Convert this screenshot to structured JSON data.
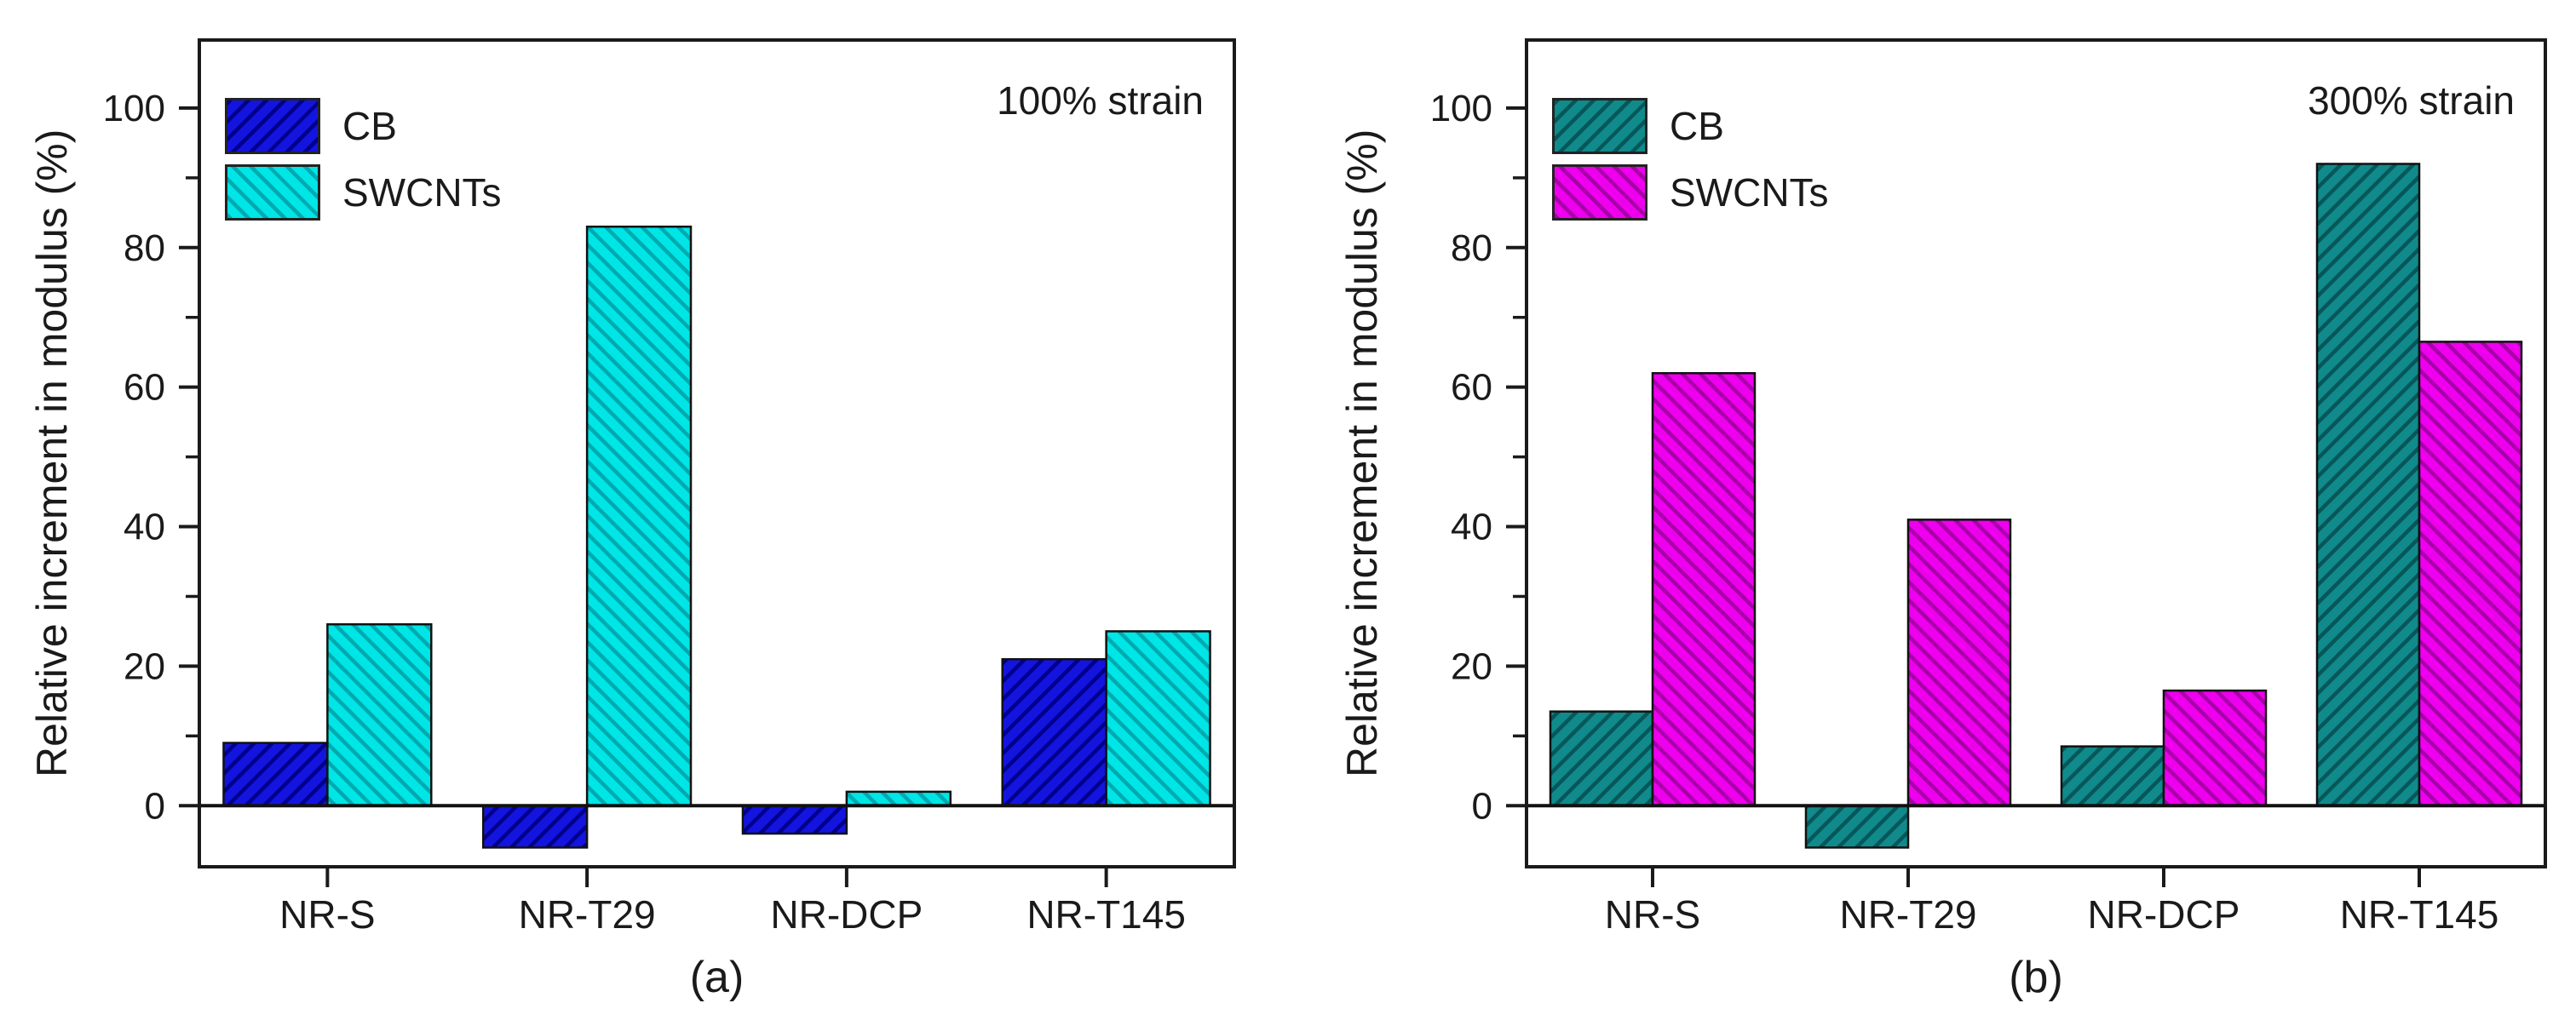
{
  "figure": {
    "background": "#FFFFFF",
    "frame_color": "#1a1a1a"
  },
  "chart_data": [
    {
      "type": "bar",
      "panel_label": "(a)",
      "annotation": "100% strain",
      "ylabel": "Relative increment in modulus (%)",
      "xlabel": "",
      "categories": [
        "NR-S",
        "NR-T29",
        "NR-DCP",
        "NR-T145"
      ],
      "series": [
        {
          "name": "CB",
          "fill": "#1414DF",
          "hatch_color": "#00008B",
          "hatch": "/",
          "values": [
            9,
            -6,
            -4,
            21
          ]
        },
        {
          "name": "SWCNTs",
          "fill": "#00E5E5",
          "hatch_color": "#00A9B0",
          "hatch": "\\",
          "values": [
            26,
            83,
            2,
            25
          ]
        }
      ],
      "ylim": [
        -9,
        110
      ],
      "yticks": [
        0,
        20,
        40,
        60,
        80,
        100
      ],
      "yticks_minor": [
        10,
        30,
        50,
        70,
        90
      ],
      "grid": false,
      "legend_position": "top-left"
    },
    {
      "type": "bar",
      "panel_label": "(b)",
      "annotation": "300% strain",
      "ylabel": "Relative increment in modulus (%)",
      "xlabel": "",
      "categories": [
        "NR-S",
        "NR-T29",
        "NR-DCP",
        "NR-T145"
      ],
      "series": [
        {
          "name": "CB",
          "fill": "#108A8A",
          "hatch_color": "#06565A",
          "hatch": "/",
          "values": [
            13.5,
            -6,
            8.5,
            92
          ]
        },
        {
          "name": "SWCNTs",
          "fill": "#EE00EE",
          "hatch_color": "#A800A8",
          "hatch": "\\",
          "values": [
            62,
            41,
            16.5,
            66.5
          ]
        }
      ],
      "ylim": [
        -9,
        110
      ],
      "yticks": [
        0,
        20,
        40,
        60,
        80,
        100
      ],
      "yticks_minor": [
        10,
        30,
        50,
        70,
        90
      ],
      "grid": false,
      "legend_position": "top-left"
    }
  ]
}
